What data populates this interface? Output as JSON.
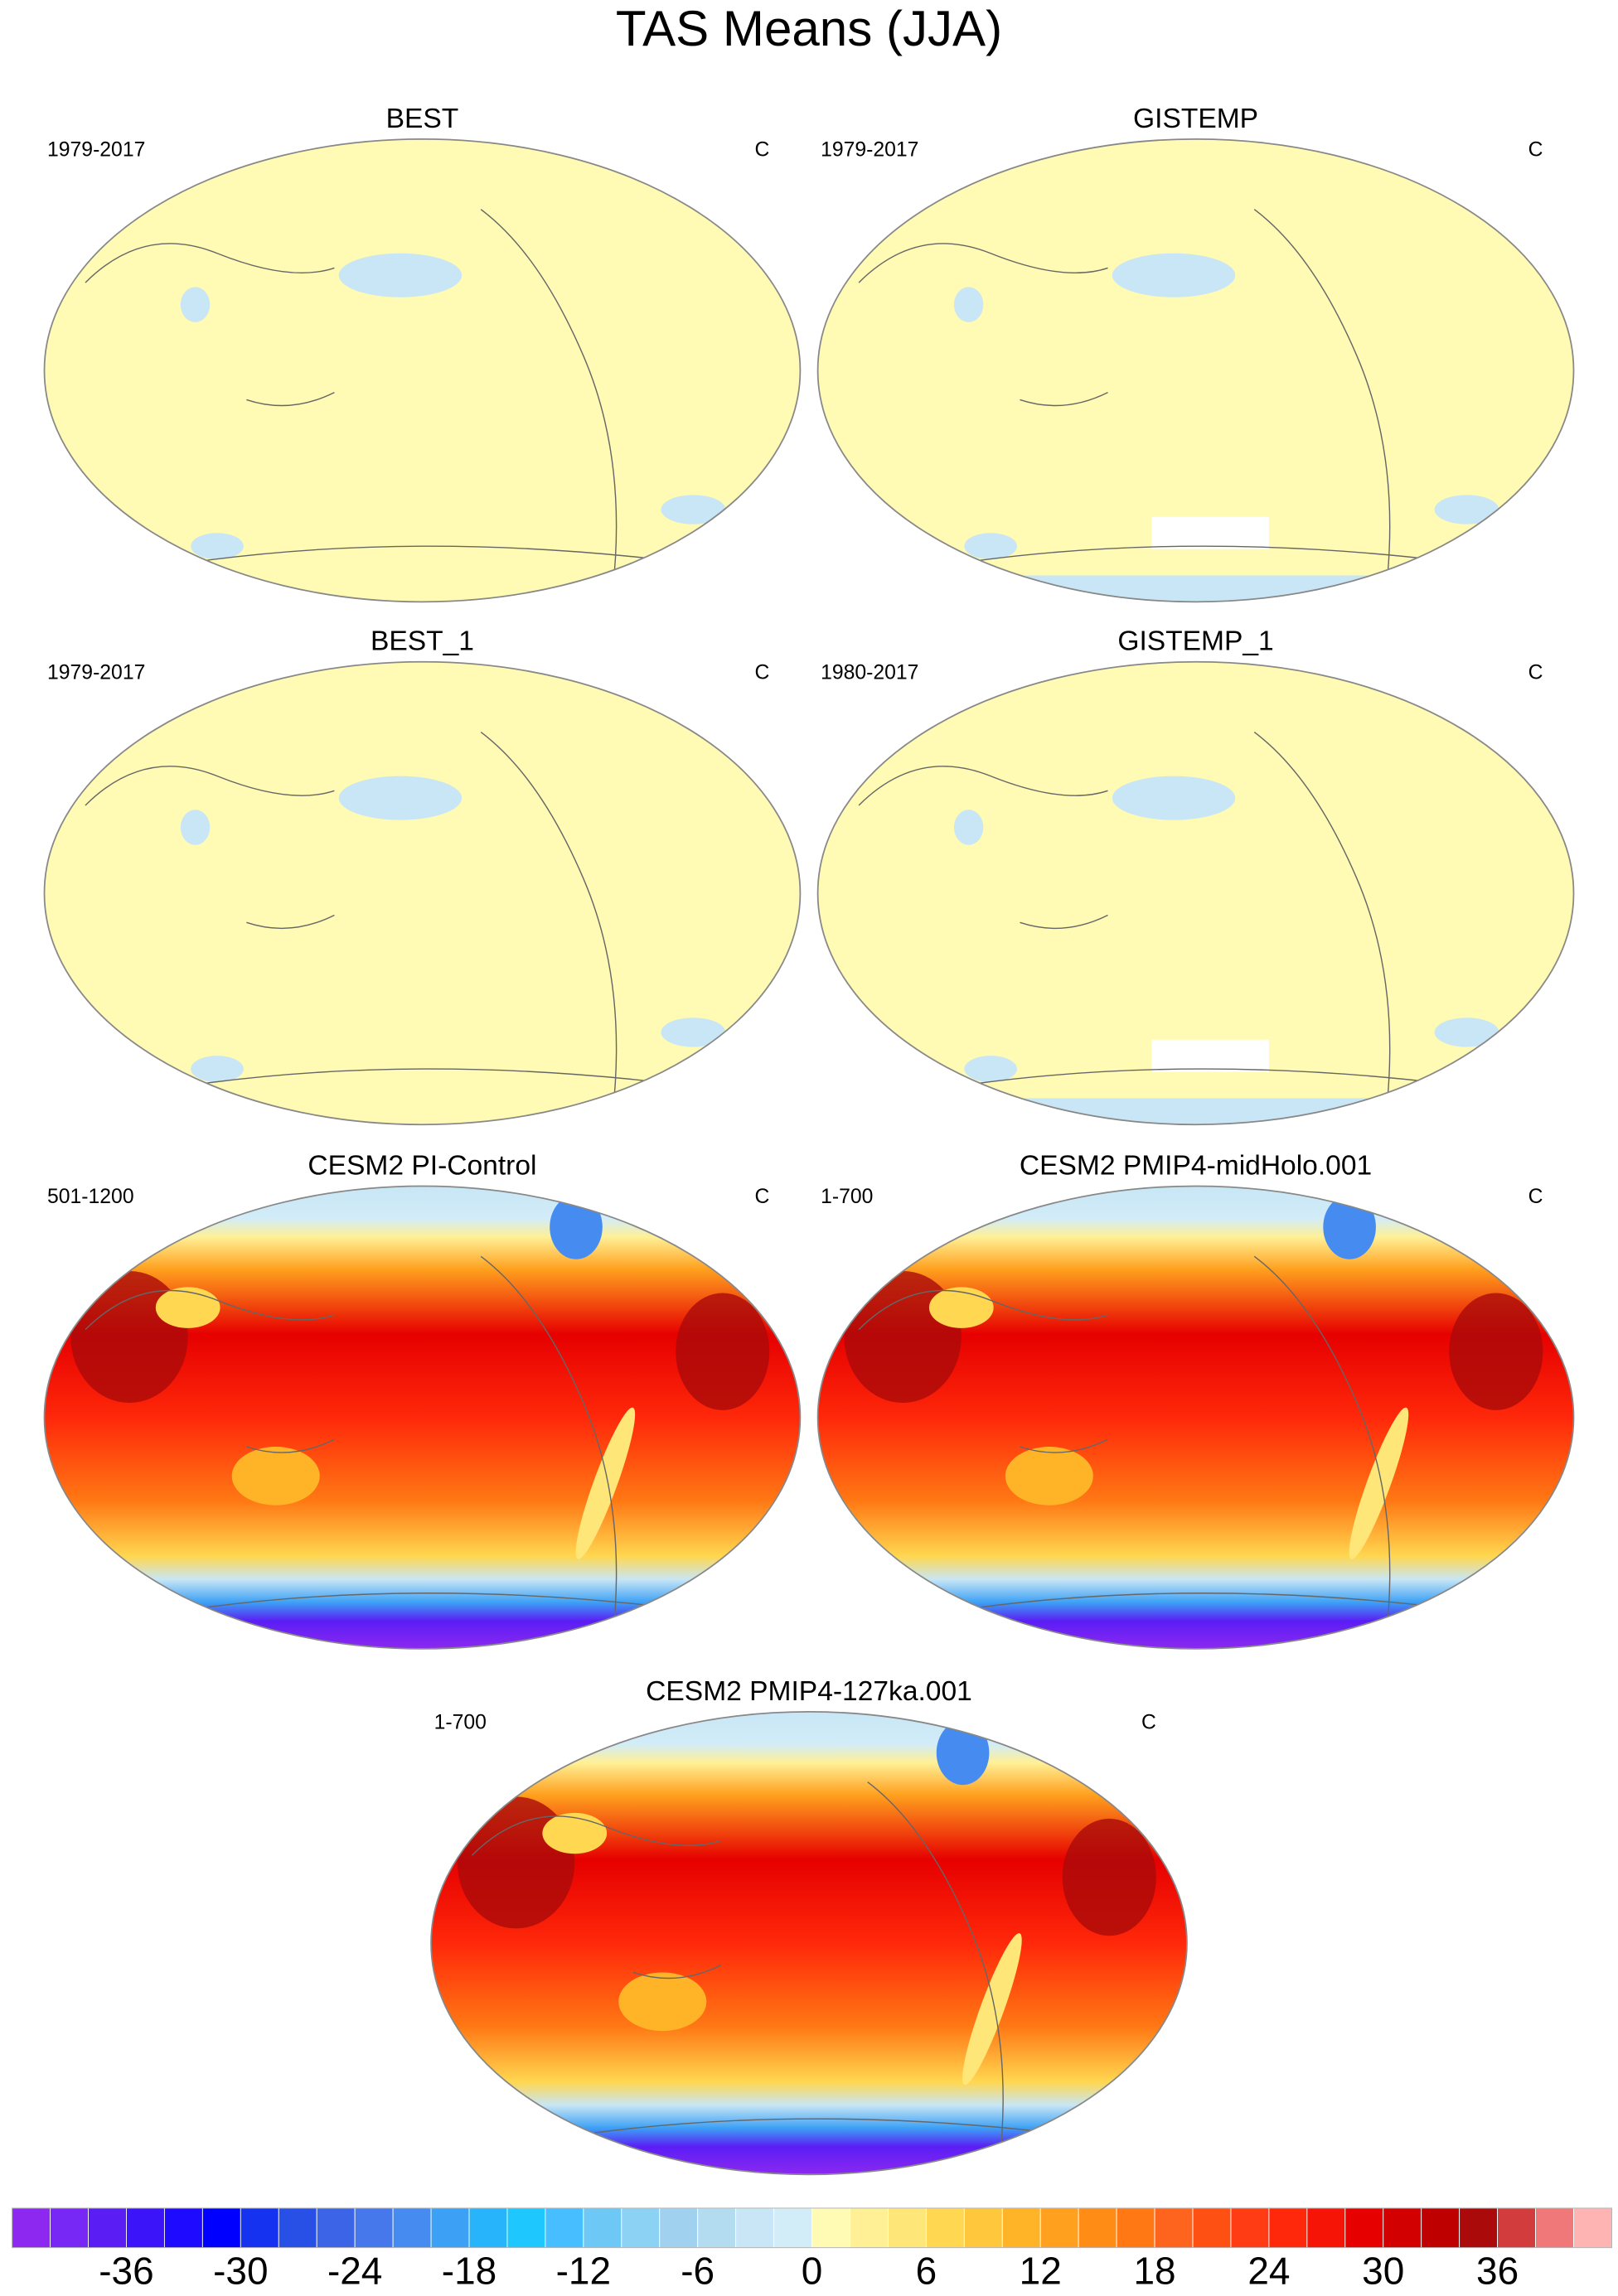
{
  "title": "TAS Means (JJA)",
  "panels": [
    {
      "title": "BEST",
      "period": "1979-2017",
      "units": "C",
      "kind": "observed"
    },
    {
      "title": "GISTEMP",
      "period": "1979-2017",
      "units": "C",
      "kind": "observed"
    },
    {
      "title": "BEST_1",
      "period": "1979-2017",
      "units": "C",
      "kind": "observed"
    },
    {
      "title": "GISTEMP_1",
      "period": "1980-2017",
      "units": "C",
      "kind": "observed"
    },
    {
      "title": "CESM2 PI-Control",
      "period": "501-1200",
      "units": "C",
      "kind": "model"
    },
    {
      "title": "CESM2 PMIP4-midHolo.001",
      "period": "1-700",
      "units": "C",
      "kind": "model"
    },
    {
      "title": "CESM2 PMIP4-127ka.001",
      "period": "1-700",
      "units": "C",
      "kind": "model"
    }
  ],
  "colorbar": {
    "clim": [
      -42,
      42
    ],
    "ticks": [
      -36,
      -30,
      -24,
      -18,
      -12,
      -6,
      0,
      6,
      12,
      18,
      24,
      30,
      36
    ],
    "colors": [
      "#8c28f0",
      "#7828f5",
      "#5a1ef5",
      "#3c14fa",
      "#1e0aff",
      "#0000ff",
      "#1432f0",
      "#2850e6",
      "#3c64e6",
      "#4678eb",
      "#468cf0",
      "#3ca0f5",
      "#28b4fa",
      "#1ec8ff",
      "#46beff",
      "#6ec8f5",
      "#8cd2f5",
      "#a0d2f0",
      "#b4dcf0",
      "#c8e6f5",
      "#d2ecf8",
      "#fffab4",
      "#fff096",
      "#ffe678",
      "#ffd750",
      "#ffc83c",
      "#ffb428",
      "#ffa01e",
      "#ff8c14",
      "#ff7814",
      "#ff641e",
      "#ff5014",
      "#ff3c14",
      "#ff280a",
      "#f51405",
      "#e60000",
      "#d20000",
      "#be0000",
      "#aa0a0a",
      "#d23c3c",
      "#f07878",
      "#ffb4b4"
    ]
  }
}
